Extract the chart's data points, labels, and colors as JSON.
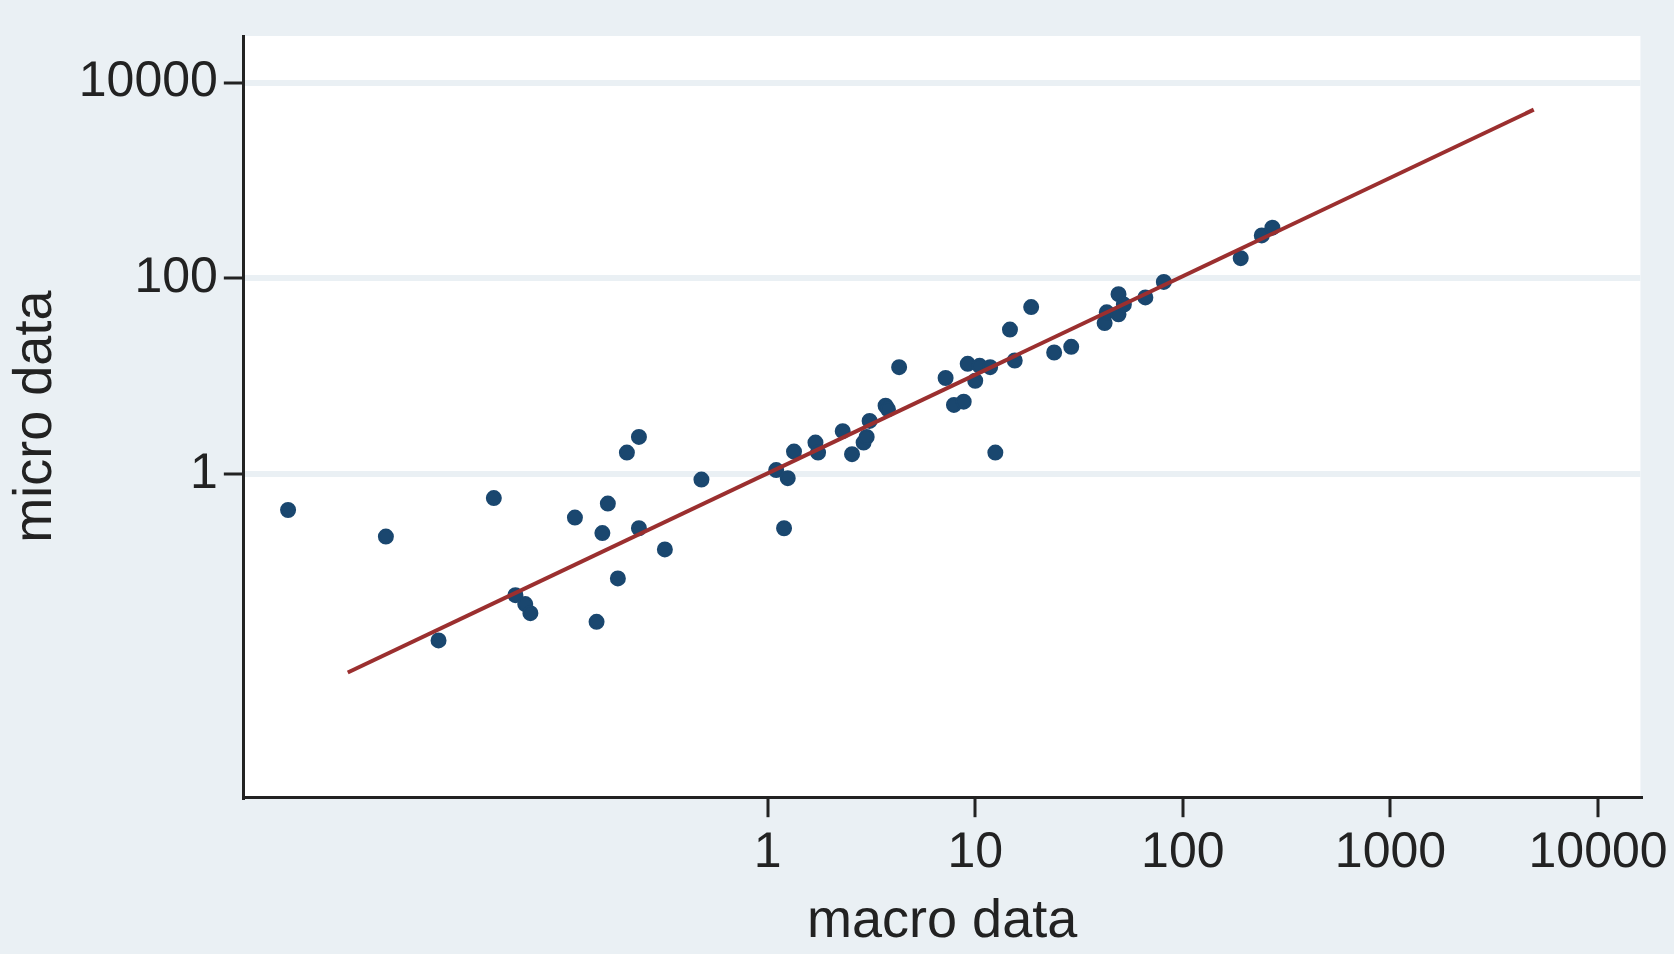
{
  "chart_data": {
    "type": "scatter",
    "xlabel": "macro data",
    "ylabel": "micro data",
    "log": "xy",
    "xlim": [
      0.003,
      16000
    ],
    "xticks": [
      1,
      10,
      100,
      1000,
      10000
    ],
    "ylim": [
      0.0005,
      30000
    ],
    "yticks": [
      1,
      100,
      10000
    ],
    "grid": "y",
    "series": [
      {
        "marker": "circle",
        "color": "#1a476f",
        "x": [
          0.0049,
          0.0145,
          0.048,
          0.026,
          0.061,
          0.068,
          0.072,
          0.118,
          0.17,
          0.16,
          0.19,
          0.15,
          0.21,
          0.24,
          0.24,
          0.32,
          0.48,
          1.2,
          1.1,
          1.25,
          1.34,
          1.7,
          1.75,
          2.3,
          2.55,
          2.9,
          3.0,
          3.1,
          3.7,
          3.8,
          4.3,
          7.2,
          7.9,
          8.8,
          9.2,
          10,
          10.5,
          11.8,
          12.5,
          15.5,
          14.7,
          18.6,
          24,
          29,
          42,
          43,
          49,
          49,
          52,
          66,
          81,
          190,
          240,
          270
        ],
        "values": [
          0.43,
          0.23,
          0.57,
          0.02,
          0.058,
          0.047,
          0.038,
          0.36,
          0.5,
          0.25,
          0.086,
          0.031,
          1.66,
          2.4,
          0.28,
          0.17,
          0.88,
          0.28,
          1.1,
          0.91,
          1.7,
          2.1,
          1.66,
          2.75,
          1.6,
          2.1,
          2.4,
          3.5,
          5.0,
          4.6,
          12.4,
          9.6,
          5.1,
          5.5,
          13.4,
          9,
          12.8,
          12.4,
          1.66,
          14.5,
          30,
          51,
          17.5,
          20,
          35,
          45,
          69,
          43,
          54,
          64,
          92,
          161,
          275,
          330
        ]
      },
      {
        "type": "line",
        "color": "#9b2f2f",
        "x": [
          0.0095,
          4900
        ],
        "values": [
          0.0094,
          5300
        ]
      }
    ]
  }
}
